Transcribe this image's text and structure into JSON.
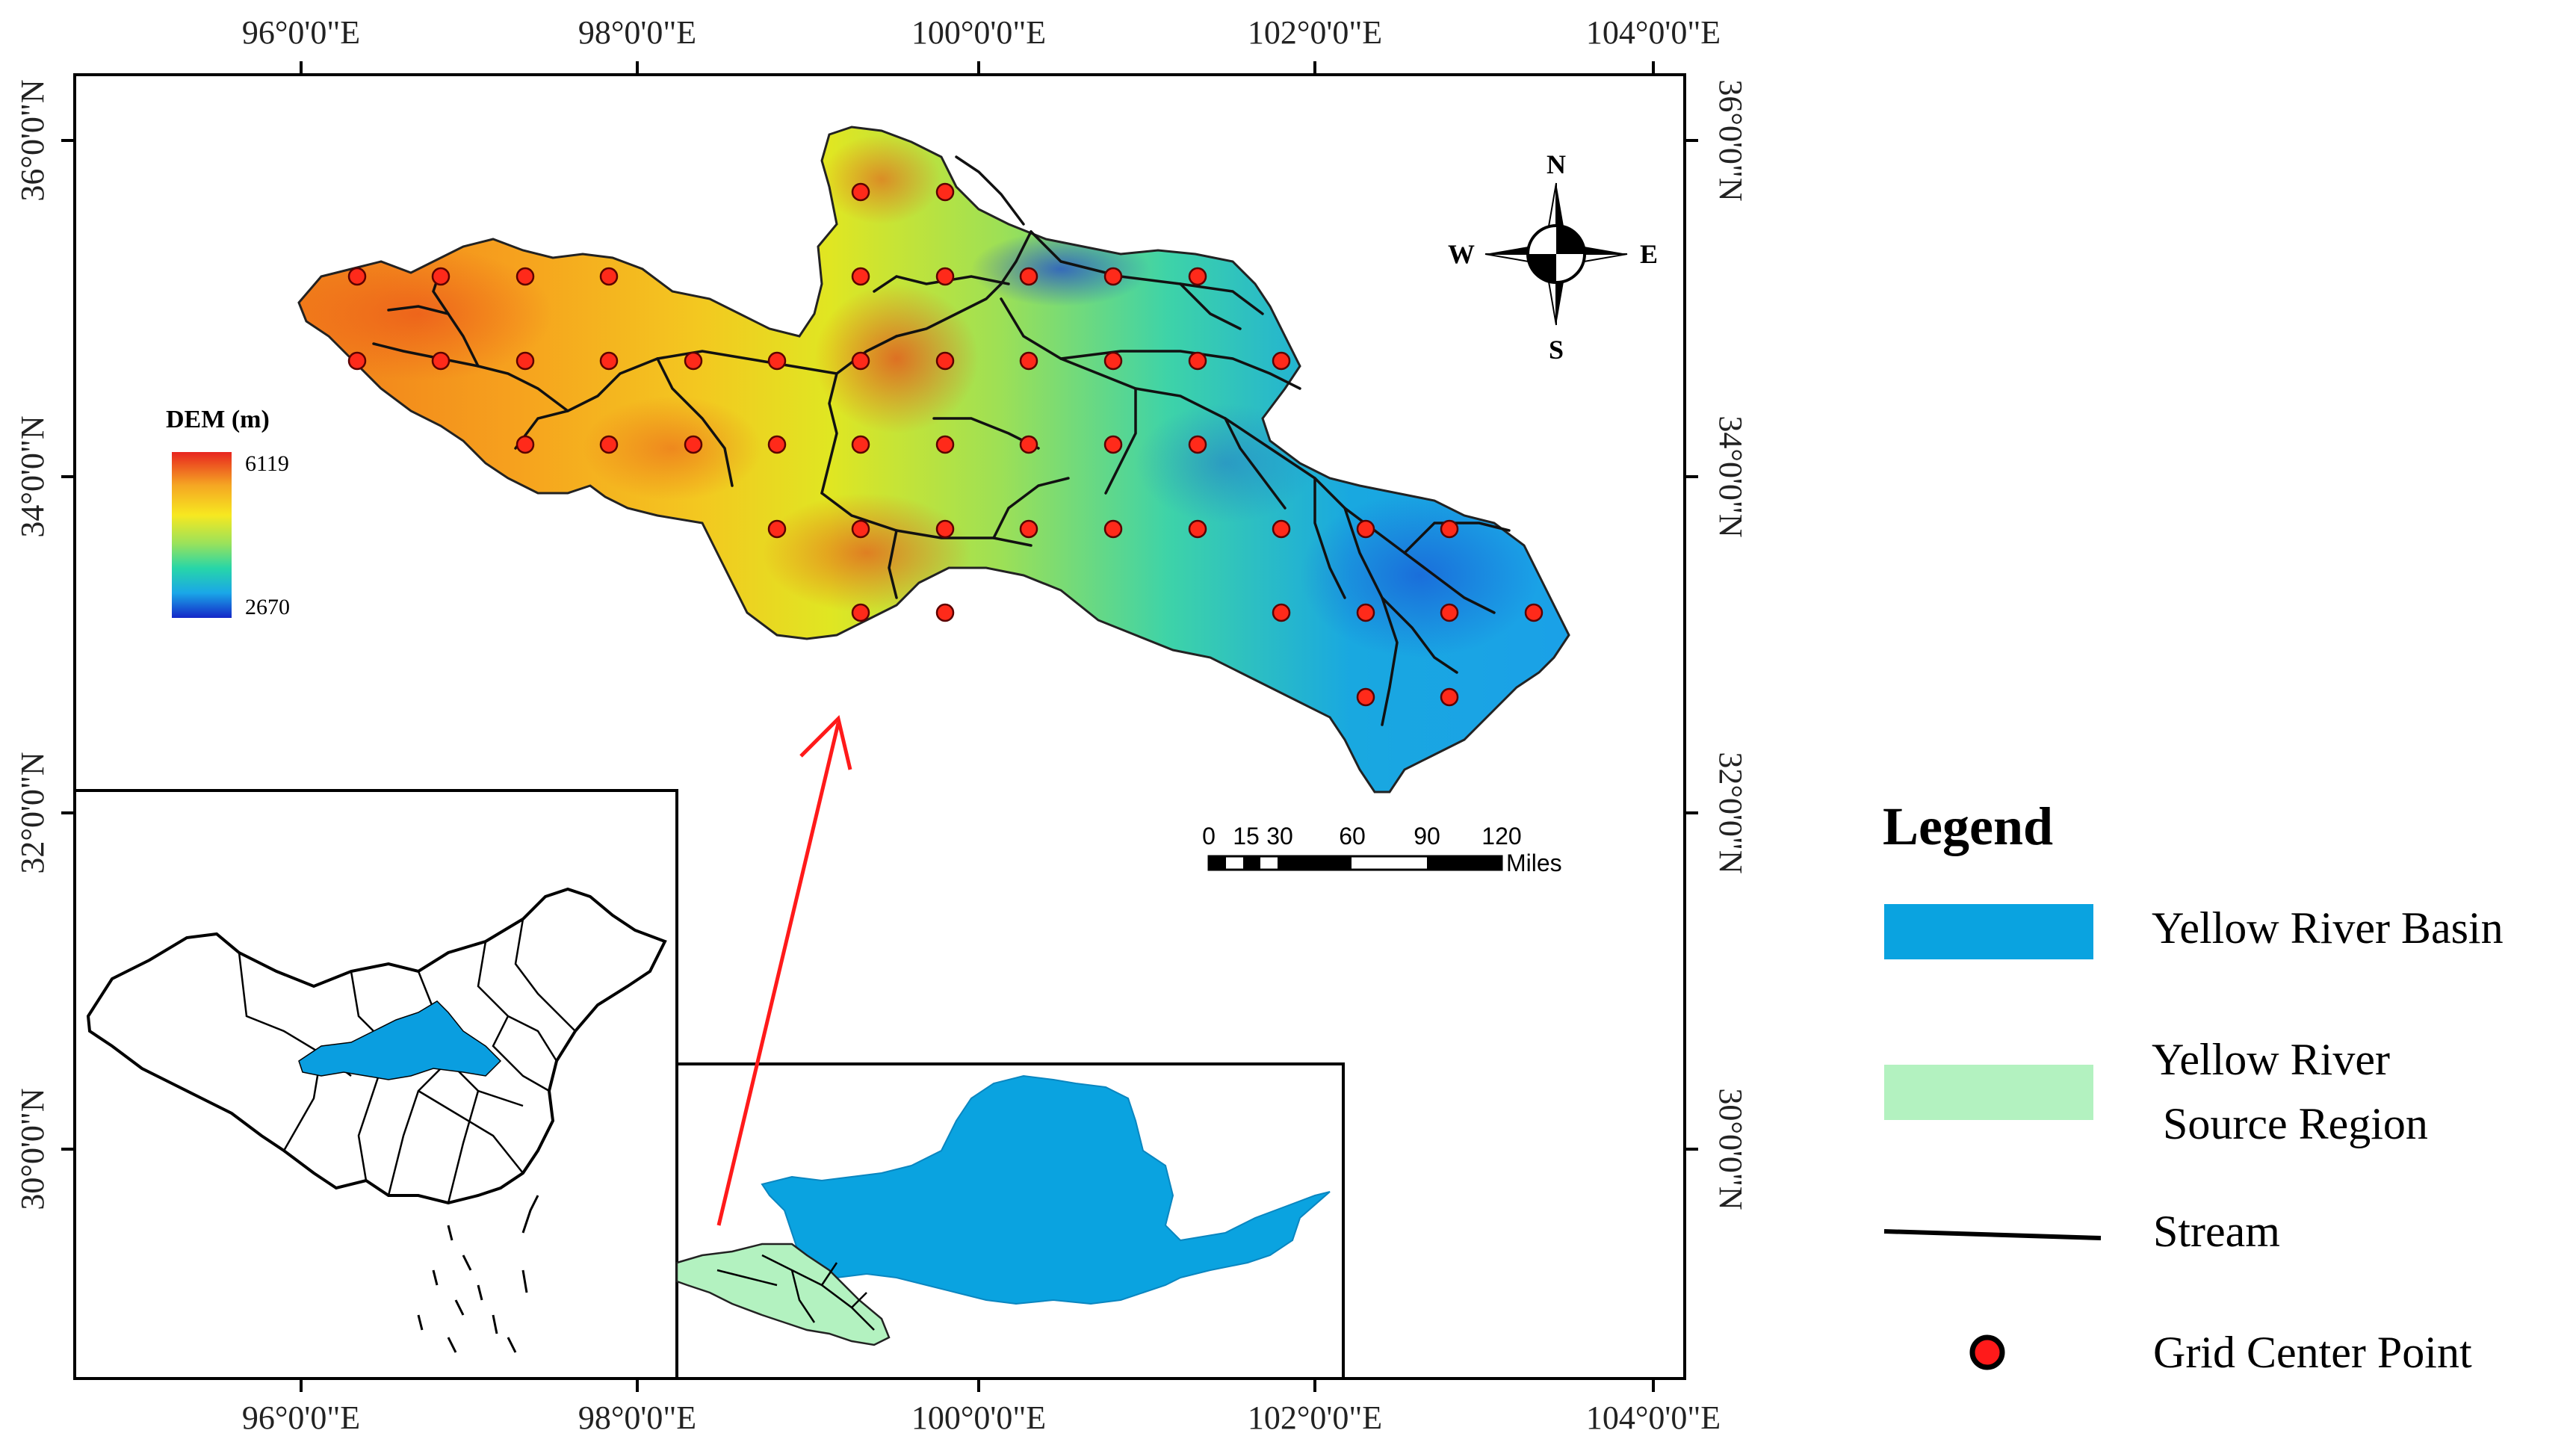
{
  "map": {
    "top_longitude_labels": [
      "96°0'0\"E",
      "98°0'0\"E",
      "100°0'0\"E",
      "102°0'0\"E",
      "104°0'0\"E"
    ],
    "bottom_longitude_labels": [
      "96°0'0\"E",
      "98°0'0\"E",
      "100°0'0\"E",
      "102°0'0\"E",
      "104°0'0\"E"
    ],
    "left_latitude_labels": [
      "36°0'0\"N",
      "34°0'0\"N",
      "32°0'0\"N",
      "30°0'0\"N"
    ],
    "right_latitude_labels": [
      "36°0'0\"N",
      "34°0'0\"N",
      "32°0'0\"N",
      "30°0'0\"N"
    ]
  },
  "dem_legend": {
    "title": "DEM (m)",
    "max_label": "6119",
    "min_label": "2670",
    "colors": [
      "#e8251f",
      "#f5a623",
      "#f7e820",
      "#9be25a",
      "#27d6a8",
      "#1aa7e8",
      "#1427c8"
    ]
  },
  "compass": {
    "n": "N",
    "s": "S",
    "e": "E",
    "w": "W"
  },
  "scale_bar": {
    "ticks": [
      "0",
      "15",
      "30",
      "60",
      "90",
      "120"
    ],
    "unit": "Miles"
  },
  "legend": {
    "title": "Legend",
    "items": [
      {
        "label_lines": [
          "Yellow River Basin"
        ],
        "symbol": "basin-swatch",
        "color": "#0aa3e0"
      },
      {
        "label_lines": [
          "Yellow River",
          " Source Region"
        ],
        "symbol": "source-swatch",
        "color": "#b3f2c0"
      },
      {
        "label_lines": [
          "Stream"
        ],
        "symbol": "stream-line",
        "color": "#000000"
      },
      {
        "label_lines": [
          "Grid Center Point"
        ],
        "symbol": "grid-point",
        "color": "#ff1a1a"
      }
    ]
  },
  "colors": {
    "basin_blue": "#0aa3e0",
    "source_green": "#b3f2c0",
    "arrow_red": "#ff1a1a",
    "grid_point_fill": "#ff2a1a"
  }
}
